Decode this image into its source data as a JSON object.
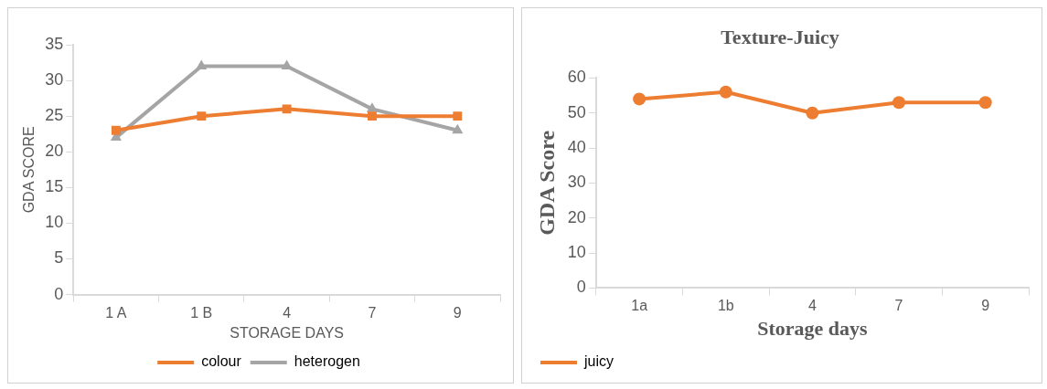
{
  "chart_data": [
    {
      "type": "line",
      "xlabel": "STORAGE DAYS",
      "ylabel": "GDA SCORE",
      "categories": [
        "1 A",
        "1 B",
        "4",
        "7",
        "9"
      ],
      "series": [
        {
          "name": "colour",
          "color": "#ed7d31",
          "values": [
            23,
            25,
            26,
            25,
            25
          ],
          "marker": "square"
        },
        {
          "name": "heterogen",
          "color": "#a5a5a5",
          "values": [
            22,
            32,
            32,
            26,
            23
          ],
          "marker": "triangle"
        }
      ],
      "ylim": [
        0,
        35
      ],
      "yticks": [
        0,
        5,
        10,
        15,
        20,
        25,
        30,
        35
      ],
      "grid": false,
      "legend": "bottom",
      "line_style": "solid"
    },
    {
      "type": "line",
      "title": "Texture-Juicy",
      "xlabel": "Storage days",
      "ylabel": "GDA Score",
      "categories": [
        "1a",
        "1b",
        "4",
        "7",
        "9"
      ],
      "series": [
        {
          "name": "juicy",
          "color": "#ed7d31",
          "values": [
            54,
            56,
            50,
            53,
            53
          ],
          "marker": "circle"
        }
      ],
      "ylim": [
        0,
        60
      ],
      "yticks": [
        0,
        10,
        20,
        30,
        40,
        50,
        60
      ],
      "grid": false,
      "legend": "bottom left",
      "line_style": "solid"
    }
  ]
}
